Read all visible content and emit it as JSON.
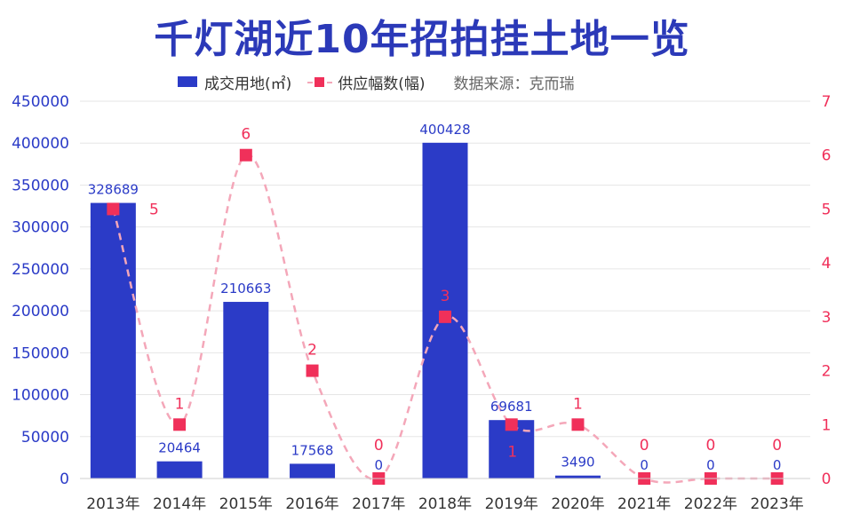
{
  "title": "千灯湖近10年招拍挂土地一览",
  "legend": {
    "bar_label": "成交用地(㎡)",
    "line_label": "供应幅数(幅)",
    "source": "数据来源：克而瑞"
  },
  "colors": {
    "bar": "#2b3bc7",
    "bar_label": "#2b3bc7",
    "point": "#f0305a",
    "line": "#f4a7b9",
    "point_label": "#f0305a",
    "left_axis": "#2b3bc7",
    "right_axis": "#f0305a",
    "title": "#2b39b8"
  },
  "chart_data": {
    "type": "bar",
    "title": "千灯湖近10年招拍挂土地一览",
    "categories": [
      "2013年",
      "2014年",
      "2015年",
      "2016年",
      "2017年",
      "2018年",
      "2019年",
      "2020年",
      "2021年",
      "2022年",
      "2023年"
    ],
    "series": [
      {
        "name": "成交用地(㎡)",
        "type": "bar",
        "axis": "left",
        "values": [
          328689,
          20464,
          210663,
          17568,
          0,
          400428,
          69681,
          3490,
          0,
          0,
          0
        ]
      },
      {
        "name": "供应幅数(幅)",
        "type": "line",
        "axis": "right",
        "values": [
          5,
          1,
          6,
          2,
          0,
          3,
          1,
          1,
          0,
          0,
          0
        ]
      }
    ],
    "ylim": [
      0,
      450000
    ],
    "yticks": [
      0,
      50000,
      100000,
      150000,
      200000,
      250000,
      300000,
      350000,
      400000,
      450000
    ],
    "y2lim": [
      0,
      7
    ],
    "y2ticks": [
      0,
      1,
      2,
      3,
      4,
      5,
      6,
      7
    ],
    "grid": true,
    "legend_position": "top-center"
  }
}
